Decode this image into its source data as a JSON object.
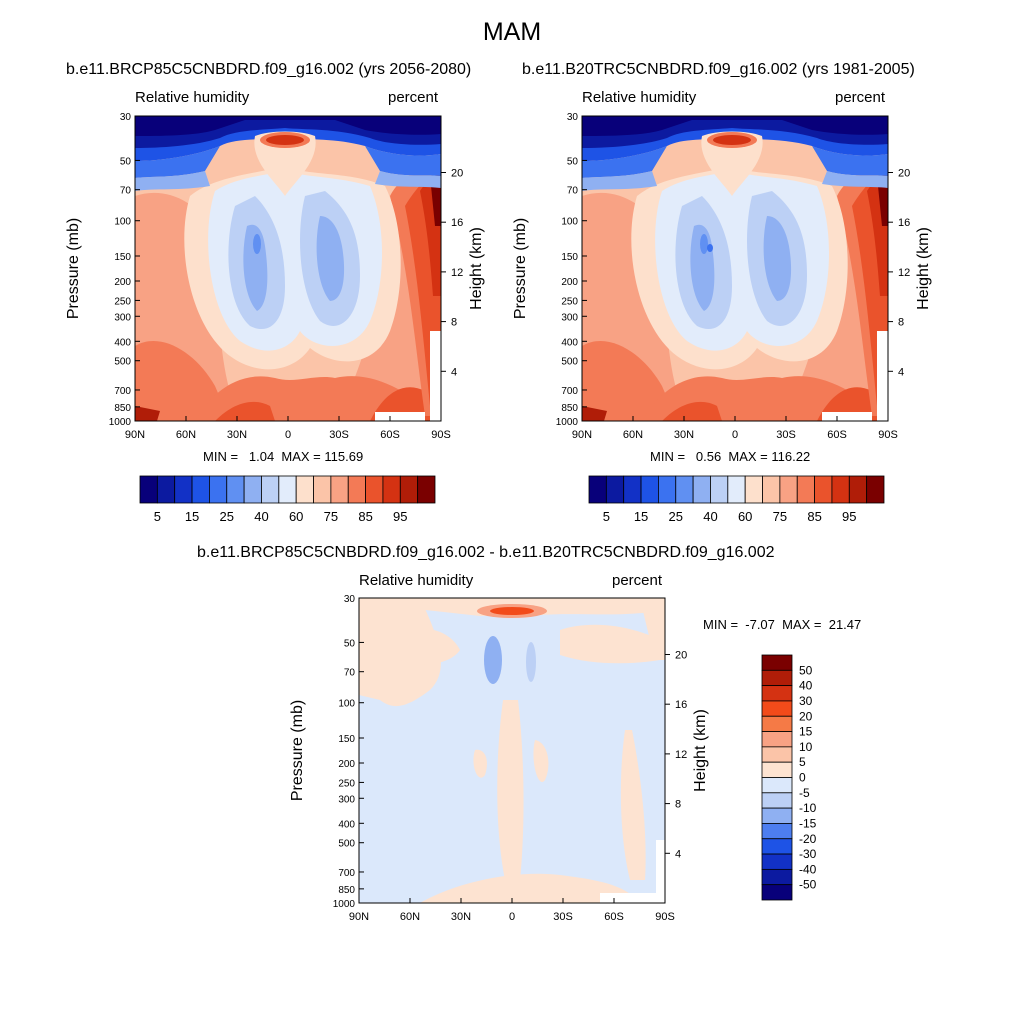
{
  "season": "MAM",
  "panels": [
    {
      "case_title": "b.e11.BRCP85C5CNBDRD.f09_g16.002 (yrs 2056-2080)",
      "left_label": "Relative humidity",
      "right_label": "percent",
      "min_max": "MIN =   1.04  MAX = 115.69"
    },
    {
      "case_title": "b.e11.B20TRC5CNBDRD.f09_g16.002 (yrs 1981-2005)",
      "left_label": "Relative humidity",
      "right_label": "percent",
      "min_max": "MIN =   0.56  MAX = 116.22"
    },
    {
      "case_title": "b.e11.BRCP85C5CNBDRD.f09_g16.002 - b.e11.B20TRC5CNBDRD.f09_g16.002",
      "left_label": "Relative humidity",
      "right_label": "percent",
      "min_max": "MIN =  -7.07  MAX =  21.47"
    }
  ],
  "axes": {
    "ylabel": "Pressure (mb)",
    "ylabel_right": "Height (km)",
    "pressure_ticks": [
      "30",
      "50",
      "70",
      "100",
      "150",
      "200",
      "250",
      "300",
      "400",
      "500",
      "700",
      "850",
      "1000"
    ],
    "pressure_values": [
      30,
      50,
      70,
      100,
      150,
      200,
      250,
      300,
      400,
      500,
      700,
      850,
      1000
    ],
    "height_ticks": [
      "20",
      "16",
      "12",
      "8",
      "4"
    ],
    "height_values": [
      20,
      16,
      12,
      8,
      4
    ],
    "lat_ticks": [
      "90N",
      "60N",
      "30N",
      "0",
      "30S",
      "60S",
      "90S"
    ],
    "lat_values": [
      90,
      60,
      30,
      0,
      -30,
      -60,
      -90
    ]
  },
  "colorbar_rh": {
    "labels": [
      "5",
      "15",
      "25",
      "40",
      "60",
      "75",
      "85",
      "95"
    ],
    "levels": [
      5,
      10,
      15,
      20,
      25,
      30,
      40,
      50,
      60,
      65,
      70,
      75,
      80,
      85,
      90,
      95
    ],
    "colors": [
      "#08007a",
      "#0c1aa0",
      "#1231c6",
      "#1e53e6",
      "#3b72f0",
      "#6090f2",
      "#8fb0f2",
      "#bcd0f5",
      "#e2ecfb",
      "#fde0cc",
      "#fbc4a8",
      "#f8a284",
      "#f37a56",
      "#ea532c",
      "#d43212",
      "#b01d08",
      "#7a0000"
    ]
  },
  "colorbar_diff": {
    "labels": [
      "50",
      "40",
      "30",
      "20",
      "15",
      "10",
      "5",
      "0",
      "-5",
      "-10",
      "-15",
      "-20",
      "-30",
      "-40",
      "-50"
    ],
    "colors_top_to_bottom": [
      "#7a0000",
      "#b01d08",
      "#d43212",
      "#f24b1a",
      "#f57a46",
      "#f8a284",
      "#fbc4a8",
      "#fde3d1",
      "#dbe8fb",
      "#bcd0f5",
      "#8fb0f2",
      "#4d7ef0",
      "#1e53e6",
      "#1231c6",
      "#0c1aa0",
      "#08007a"
    ]
  },
  "chart_data": [
    {
      "type": "heatmap",
      "title": "b.e11.BRCP85C5CNBDRD.f09_g16.002 (yrs 2056-2080)",
      "field": "Relative humidity",
      "units": "percent",
      "xlabel": "",
      "ylabel": "Pressure (mb)",
      "x": [
        90,
        60,
        30,
        0,
        -30,
        -60,
        -90
      ],
      "y": [
        30,
        50,
        70,
        100,
        150,
        200,
        250,
        300,
        400,
        500,
        700,
        850,
        1000
      ],
      "min": 1.04,
      "max": 115.69
    },
    {
      "type": "heatmap",
      "title": "b.e11.B20TRC5CNBDRD.f09_g16.002 (yrs 1981-2005)",
      "field": "Relative humidity",
      "units": "percent",
      "xlabel": "",
      "ylabel": "Pressure (mb)",
      "x": [
        90,
        60,
        30,
        0,
        -30,
        -60,
        -90
      ],
      "y": [
        30,
        50,
        70,
        100,
        150,
        200,
        250,
        300,
        400,
        500,
        700,
        850,
        1000
      ],
      "min": 0.56,
      "max": 116.22
    },
    {
      "type": "heatmap",
      "title": "b.e11.BRCP85C5CNBDRD.f09_g16.002 - b.e11.B20TRC5CNBDRD.f09_g16.002",
      "field": "Relative humidity",
      "units": "percent",
      "xlabel": "",
      "ylabel": "Pressure (mb)",
      "x": [
        90,
        60,
        30,
        0,
        -30,
        -60,
        -90
      ],
      "y": [
        30,
        50,
        70,
        100,
        150,
        200,
        250,
        300,
        400,
        500,
        700,
        850,
        1000
      ],
      "min": -7.07,
      "max": 21.47
    }
  ]
}
